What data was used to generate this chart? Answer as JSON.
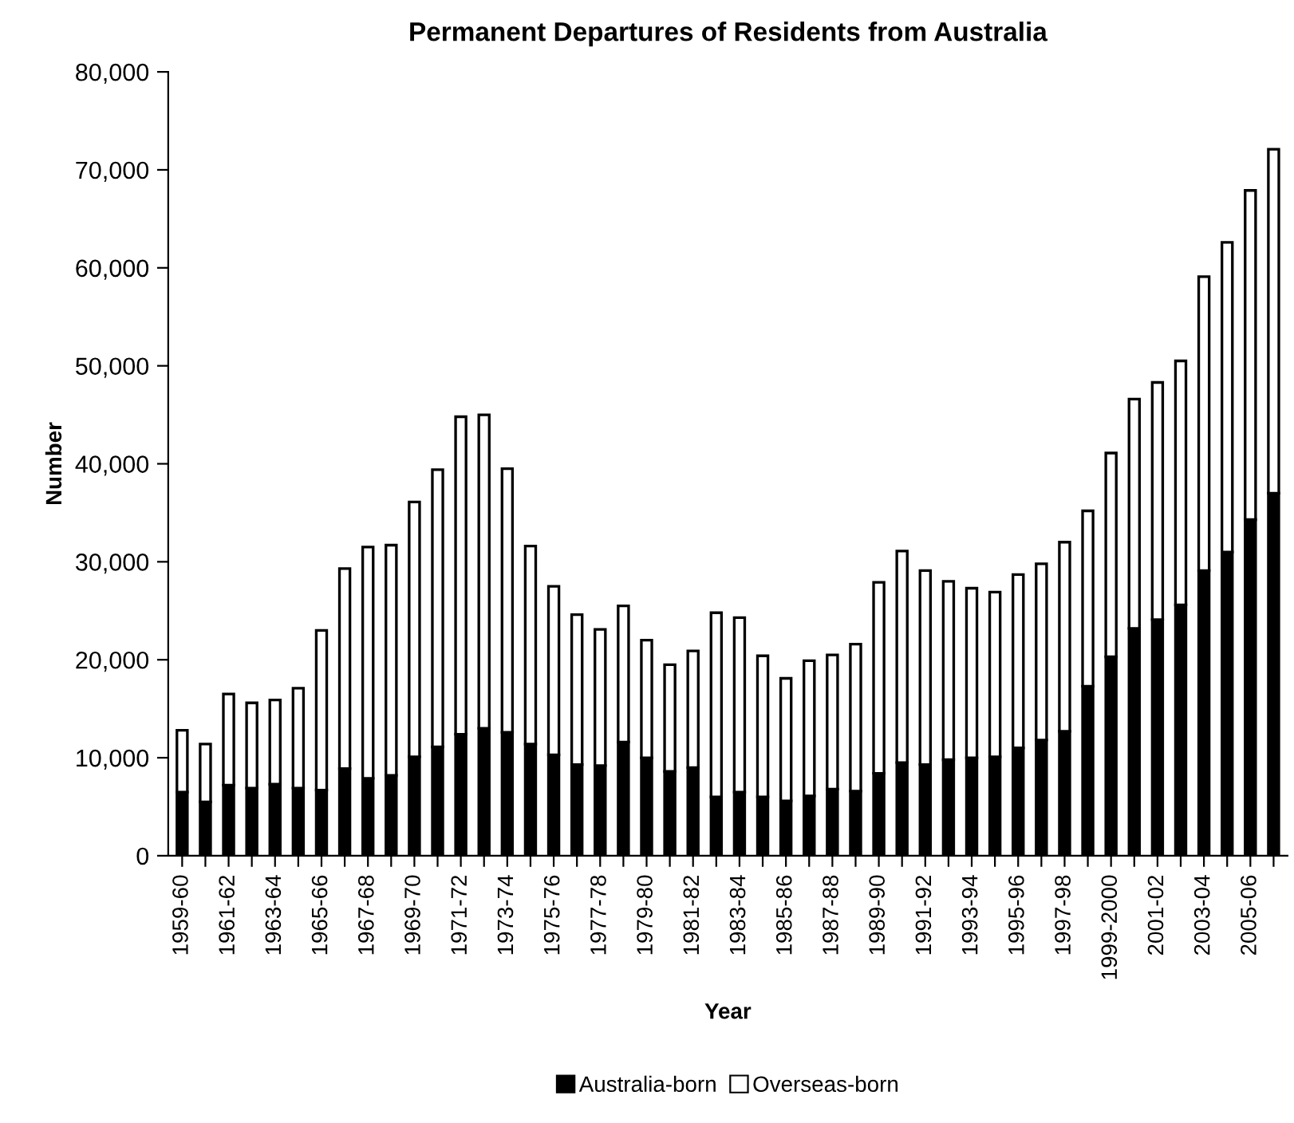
{
  "chart_data": {
    "type": "bar",
    "title": "Permanent Departures of Residents from Australia",
    "xlabel": "Year",
    "ylabel": "Number",
    "categories": [
      "1959-60",
      null,
      "1961-62",
      null,
      "1963-64",
      null,
      "1965-66",
      null,
      "1967-68",
      null,
      "1969-70",
      null,
      "1971-72",
      null,
      "1973-74",
      null,
      "1975-76",
      null,
      "1977-78",
      null,
      "1979-80",
      null,
      "1981-82",
      null,
      "1983-84",
      null,
      "1985-86",
      null,
      "1987-88",
      null,
      "1989-90",
      null,
      "1991-92",
      null,
      "1993-94",
      null,
      "1995-96",
      null,
      "1997-98",
      null,
      "1999-2000",
      null,
      "2001-02",
      null,
      "2003-04",
      null,
      "2005-06",
      null
    ],
    "stacked": true,
    "series": [
      {
        "name": "Australia-born",
        "color": "#000000",
        "values": [
          6500,
          5500,
          7200,
          6900,
          7300,
          6900,
          6700,
          8900,
          7900,
          8200,
          10100,
          11100,
          12400,
          13000,
          12600,
          11400,
          10300,
          9300,
          9200,
          11600,
          10000,
          8600,
          9000,
          6000,
          6500,
          6000,
          5600,
          6100,
          6800,
          6600,
          8400,
          9500,
          9300,
          9800,
          10000,
          10100,
          11000,
          11800,
          12700,
          17300,
          20300,
          23200,
          24100,
          25600,
          29100,
          31000,
          34300,
          37000
        ]
      },
      {
        "name": "Overseas-born",
        "color": "#ffffff",
        "values": [
          6300,
          5900,
          9300,
          8700,
          8600,
          10200,
          16300,
          20400,
          23600,
          23500,
          26000,
          28300,
          32400,
          32000,
          26900,
          20200,
          17200,
          15300,
          13900,
          13900,
          12000,
          10900,
          11900,
          18800,
          17800,
          14400,
          12500,
          13800,
          13700,
          15000,
          19500,
          21600,
          19800,
          18200,
          17300,
          16800,
          17700,
          18000,
          19300,
          17900,
          20800,
          23400,
          24200,
          24900,
          30000,
          31600,
          33600,
          35100
        ]
      }
    ],
    "ylim": [
      0,
      80000
    ],
    "yticks": [
      0,
      {
        "value": 10000,
        "label": "10,000"
      },
      {
        "value": 20000,
        "label": "20,000"
      },
      {
        "value": 30000,
        "label": "30,000"
      },
      {
        "value": 40000,
        "label": "40,000"
      },
      {
        "value": 50000,
        "label": "50,000"
      },
      {
        "value": 60000,
        "label": "60,000"
      },
      {
        "value": 70000,
        "label": "70,000"
      },
      {
        "value": 80000,
        "label": "80,000"
      }
    ],
    "grid": false,
    "legend": "bottom"
  }
}
